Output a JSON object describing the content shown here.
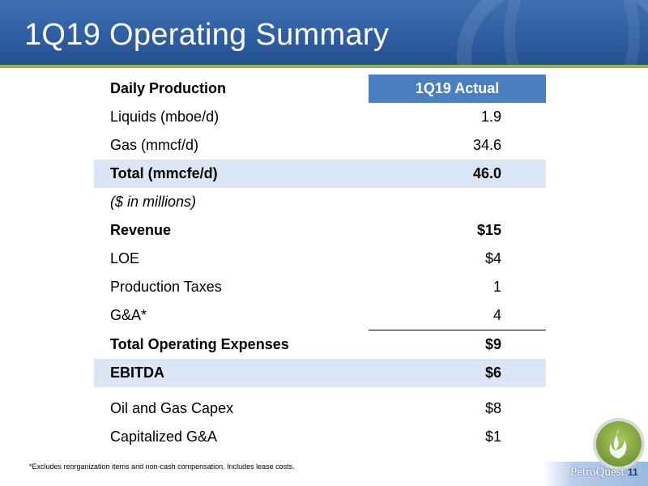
{
  "header": {
    "title": "1Q19 Operating Summary"
  },
  "table": {
    "column_header": "1Q19 Actual",
    "rows": [
      {
        "label": "Daily Production",
        "value": "1Q19 Actual"
      },
      {
        "label": "Liquids (mboe/d)",
        "value": "1.9"
      },
      {
        "label": "Gas (mmcf/d)",
        "value": "34.6"
      },
      {
        "label": "Total (mmcfe/d)",
        "value": "46.0"
      },
      {
        "label": "($ in millions)",
        "value": ""
      },
      {
        "label": "Revenue",
        "value": "$15"
      },
      {
        "label": "LOE",
        "value": "$4"
      },
      {
        "label": "Production Taxes",
        "value": "1"
      },
      {
        "label": "G&A*",
        "value": "4"
      },
      {
        "label": "Total Operating Expenses",
        "value": "$9"
      },
      {
        "label": "EBITDA",
        "value": "$6"
      },
      {
        "label": "Oil and Gas Capex",
        "value": "$8"
      },
      {
        "label": "Capitalized G&A",
        "value": "$1"
      }
    ]
  },
  "footer": {
    "footnote": "*Excludes reorganization items and non-cash compensation.  Includes lease costs.",
    "brand": "PetroQuest",
    "page_number": "11"
  },
  "colors": {
    "header_blue": "#2f5ea3",
    "accent_green": "#8fb54a",
    "column_header_bg": "#4a80c2",
    "highlight_row_bg": "#dbe6f6"
  },
  "icons": {
    "logo": "flame-logo-icon"
  }
}
